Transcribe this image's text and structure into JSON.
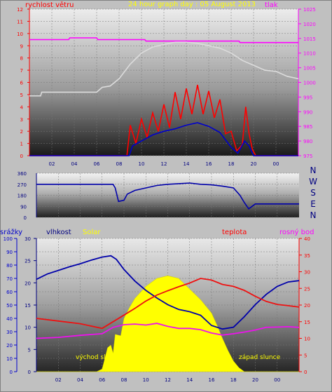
{
  "title": "24 hour graph day : 05 August 2013",
  "colors": {
    "frame_bg": "#c0c0c0",
    "wind_line": "#ff0000",
    "gust_line": "#0000cc",
    "pressure_line": "#ff00ff",
    "temperature_line": "#dcdcdc",
    "direction_line": "#0000aa",
    "humidity_line": "#0000aa",
    "temp_line": "#ee1111",
    "dew_line": "#ee11ee",
    "solar_fill": "#ffff00",
    "rain_axis": "#0000cc",
    "humidity_axis": "#000080",
    "temp_axis": "#ff0000"
  },
  "x_ticks": [
    "02",
    "04",
    "06",
    "08",
    "10",
    "12",
    "14",
    "16",
    "18",
    "20",
    "00"
  ],
  "chart_data": [
    {
      "type": "line",
      "panel": "wind and pressure",
      "left_axis_title": "rychlost větru",
      "right_axis_title": "tlak",
      "left_ylim": [
        0,
        12
      ],
      "left_ticks": [
        "0",
        "1",
        "2",
        "3",
        "4",
        "5",
        "6",
        "7",
        "8",
        "9",
        "10",
        "11",
        "12"
      ],
      "right_ylim": [
        975,
        1025
      ],
      "right_ticks": [
        "975",
        "980",
        "985",
        "990",
        "995",
        "1000",
        "1005",
        "1010",
        "1015",
        "1020",
        "1025"
      ],
      "x_hours": [
        0,
        1,
        2,
        3,
        4,
        5,
        6,
        7,
        8,
        9,
        10,
        11,
        12,
        13,
        14,
        15,
        16,
        17,
        18,
        19,
        20,
        21,
        22,
        23,
        24
      ],
      "series": [
        {
          "color_key": "pressure_line",
          "axis": "right",
          "points": [
            [
              0,
              1014.6
            ],
            [
              3.5,
              1014.6
            ],
            [
              3.6,
              1015.2
            ],
            [
              6,
              1015.2
            ],
            [
              6.1,
              1014.6
            ],
            [
              10.3,
              1014.6
            ],
            [
              10.4,
              1014.1
            ],
            [
              18.7,
              1014.1
            ],
            [
              18.8,
              1013.6
            ],
            [
              24,
              1013.6
            ]
          ]
        },
        {
          "color_key": "temperature_line",
          "axis": "left",
          "points": [
            [
              0,
              4.9
            ],
            [
              1,
              4.9
            ],
            [
              1.1,
              5.2
            ],
            [
              6,
              5.2
            ],
            [
              6.5,
              5.6
            ],
            [
              7.2,
              5.7
            ],
            [
              8,
              6.3
            ],
            [
              9,
              7.5
            ],
            [
              10,
              8.4
            ],
            [
              11,
              8.9
            ],
            [
              12,
              9.1
            ],
            [
              13,
              9.3
            ],
            [
              14,
              9.3
            ],
            [
              15,
              9.2
            ],
            [
              16,
              9.0
            ],
            [
              17,
              8.8
            ],
            [
              18,
              8.4
            ],
            [
              19,
              7.8
            ],
            [
              20,
              7.4
            ],
            [
              21,
              7.0
            ],
            [
              22,
              6.9
            ],
            [
              23,
              6.5
            ],
            [
              24,
              6.3
            ]
          ]
        },
        {
          "color_key": "wind_line",
          "axis": "left",
          "points": [
            [
              0,
              0
            ],
            [
              8.7,
              0
            ],
            [
              9.0,
              2.5
            ],
            [
              9.5,
              1.0
            ],
            [
              10,
              3.0
            ],
            [
              10.5,
              1.5
            ],
            [
              11,
              3.5
            ],
            [
              11.5,
              2.0
            ],
            [
              12,
              4.2
            ],
            [
              12.5,
              2.3
            ],
            [
              13,
              5.2
            ],
            [
              13.5,
              3.0
            ],
            [
              14,
              5.5
            ],
            [
              14.5,
              3.4
            ],
            [
              15,
              5.8
            ],
            [
              15.5,
              3.4
            ],
            [
              16,
              5.3
            ],
            [
              16.5,
              3.1
            ],
            [
              17,
              4.6
            ],
            [
              17.5,
              1.8
            ],
            [
              18,
              2.0
            ],
            [
              18.5,
              0.4
            ],
            [
              19,
              0.9
            ],
            [
              19.3,
              4.0
            ],
            [
              19.6,
              1.8
            ],
            [
              19.9,
              0.5
            ],
            [
              20.2,
              0
            ],
            [
              24,
              0
            ]
          ]
        },
        {
          "color_key": "gust_line",
          "axis": "left",
          "points": [
            [
              0,
              0
            ],
            [
              8.9,
              0
            ],
            [
              9.2,
              0.8
            ],
            [
              10,
              1.2
            ],
            [
              11,
              1.7
            ],
            [
              12,
              2.0
            ],
            [
              13,
              2.2
            ],
            [
              14,
              2.5
            ],
            [
              15,
              2.7
            ],
            [
              16,
              2.4
            ],
            [
              17,
              1.9
            ],
            [
              18,
              0.7
            ],
            [
              18.6,
              0.2
            ],
            [
              19.2,
              1.2
            ],
            [
              19.6,
              0.8
            ],
            [
              20.0,
              0
            ],
            [
              24,
              0
            ]
          ]
        }
      ]
    },
    {
      "type": "line",
      "panel": "wind direction",
      "left_ylim": [
        0,
        360
      ],
      "left_ticks": [
        "0",
        "90",
        "180",
        "270",
        "360"
      ],
      "right_labels": [
        "N",
        "W",
        "S",
        "E",
        "N"
      ],
      "series": [
        {
          "color_key": "direction_line",
          "points": [
            [
              0,
              270
            ],
            [
              7.0,
              270
            ],
            [
              7.2,
              240
            ],
            [
              7.5,
              130
            ],
            [
              8,
              140
            ],
            [
              8.3,
              190
            ],
            [
              9,
              220
            ],
            [
              10,
              240
            ],
            [
              11,
              260
            ],
            [
              12,
              270
            ],
            [
              13,
              275
            ],
            [
              14,
              280
            ],
            [
              15,
              270
            ],
            [
              16,
              265
            ],
            [
              17,
              255
            ],
            [
              18,
              240
            ],
            [
              18.6,
              180
            ],
            [
              19,
              120
            ],
            [
              19.4,
              70
            ],
            [
              19.7,
              90
            ],
            [
              20,
              110
            ],
            [
              24,
              110
            ]
          ]
        }
      ]
    },
    {
      "type": "line",
      "panel": "humidity temperature solar",
      "labels": [
        "srážky",
        "vlhkost",
        "Solar",
        "teplota",
        "rosný bod"
      ],
      "rain_ylim": [
        0,
        100
      ],
      "rain_ticks": [
        "0",
        "10",
        "20",
        "30",
        "40",
        "50",
        "60",
        "70",
        "80",
        "90",
        "100"
      ],
      "humidity_ylim": [
        0,
        30
      ],
      "humidity_ticks": [
        "0",
        "5",
        "10",
        "15",
        "20",
        "25",
        "30"
      ],
      "temp_ylim": [
        0,
        40
      ],
      "temp_ticks": [
        "0",
        "5",
        "10",
        "15",
        "20",
        "25",
        "30",
        "35",
        "40"
      ],
      "annotations": [
        "východ slunce",
        "západ slunce"
      ],
      "series": [
        {
          "color_key": "humidity_line",
          "axis": "humidity",
          "points": [
            [
              0,
              20.8
            ],
            [
              1,
              22.0
            ],
            [
              2,
              22.8
            ],
            [
              3,
              23.6
            ],
            [
              4,
              24.3
            ],
            [
              5,
              25.1
            ],
            [
              6,
              25.8
            ],
            [
              6.8,
              26.1
            ],
            [
              7.3,
              25.3
            ],
            [
              8,
              23.0
            ],
            [
              9,
              20.4
            ],
            [
              10,
              18.3
            ],
            [
              11,
              16.6
            ],
            [
              12,
              15.1
            ],
            [
              13,
              14.0
            ],
            [
              14,
              13.5
            ],
            [
              15,
              12.7
            ],
            [
              16,
              10.4
            ],
            [
              17,
              9.6
            ],
            [
              18,
              10.0
            ],
            [
              19,
              12.4
            ],
            [
              20,
              15.1
            ],
            [
              21,
              17.4
            ],
            [
              22,
              19.2
            ],
            [
              23,
              20.2
            ],
            [
              24,
              20.5
            ]
          ]
        },
        {
          "color_key": "temp_line",
          "axis": "temp",
          "points": [
            [
              0,
              16.0
            ],
            [
              2,
              15.2
            ],
            [
              4,
              14.4
            ],
            [
              6,
              13.0
            ],
            [
              7,
              15.0
            ],
            [
              8,
              17.0
            ],
            [
              9,
              19.0
            ],
            [
              10,
              21.2
            ],
            [
              11,
              23.0
            ],
            [
              12,
              24.3
            ],
            [
              13,
              25.5
            ],
            [
              14,
              26.6
            ],
            [
              15,
              28.0
            ],
            [
              16,
              27.5
            ],
            [
              17,
              26.2
            ],
            [
              18,
              25.6
            ],
            [
              19,
              24.4
            ],
            [
              20,
              22.6
            ],
            [
              21,
              21.1
            ],
            [
              22,
              20.2
            ],
            [
              23,
              19.8
            ],
            [
              24,
              19.4
            ]
          ]
        },
        {
          "color_key": "dew_line",
          "axis": "temp",
          "points": [
            [
              0,
              10.0
            ],
            [
              2,
              10.3
            ],
            [
              4,
              10.9
            ],
            [
              6,
              11.4
            ],
            [
              7,
              13.3
            ],
            [
              8,
              14.1
            ],
            [
              9,
              14.3
            ],
            [
              10,
              14.0
            ],
            [
              11,
              14.5
            ],
            [
              12,
              13.6
            ],
            [
              13,
              13.0
            ],
            [
              14,
              13.0
            ],
            [
              15,
              12.6
            ],
            [
              16,
              11.6
            ],
            [
              17,
              11.0
            ],
            [
              18,
              11.4
            ],
            [
              19,
              11.9
            ],
            [
              20,
              12.5
            ],
            [
              21,
              13.3
            ],
            [
              22,
              13.4
            ],
            [
              23,
              13.5
            ],
            [
              24,
              13.3
            ]
          ]
        },
        {
          "color_key": "solar_fill",
          "axis": "rain",
          "fill": true,
          "points": [
            [
              0,
              0
            ],
            [
              5.5,
              0
            ],
            [
              6.0,
              2
            ],
            [
              6.5,
              18
            ],
            [
              6.8,
              20
            ],
            [
              7.0,
              14
            ],
            [
              7.2,
              28
            ],
            [
              7.7,
              27
            ],
            [
              8.0,
              40
            ],
            [
              8.5,
              48
            ],
            [
              9,
              55
            ],
            [
              10,
              64
            ],
            [
              11,
              70
            ],
            [
              12,
              72
            ],
            [
              13,
              70
            ],
            [
              14,
              62
            ],
            [
              15,
              54
            ],
            [
              16,
              44
            ],
            [
              16.5,
              35
            ],
            [
              17,
              25
            ],
            [
              17.5,
              16
            ],
            [
              18,
              8
            ],
            [
              18.5,
              3
            ],
            [
              19,
              0
            ],
            [
              24,
              0
            ]
          ]
        }
      ]
    }
  ]
}
